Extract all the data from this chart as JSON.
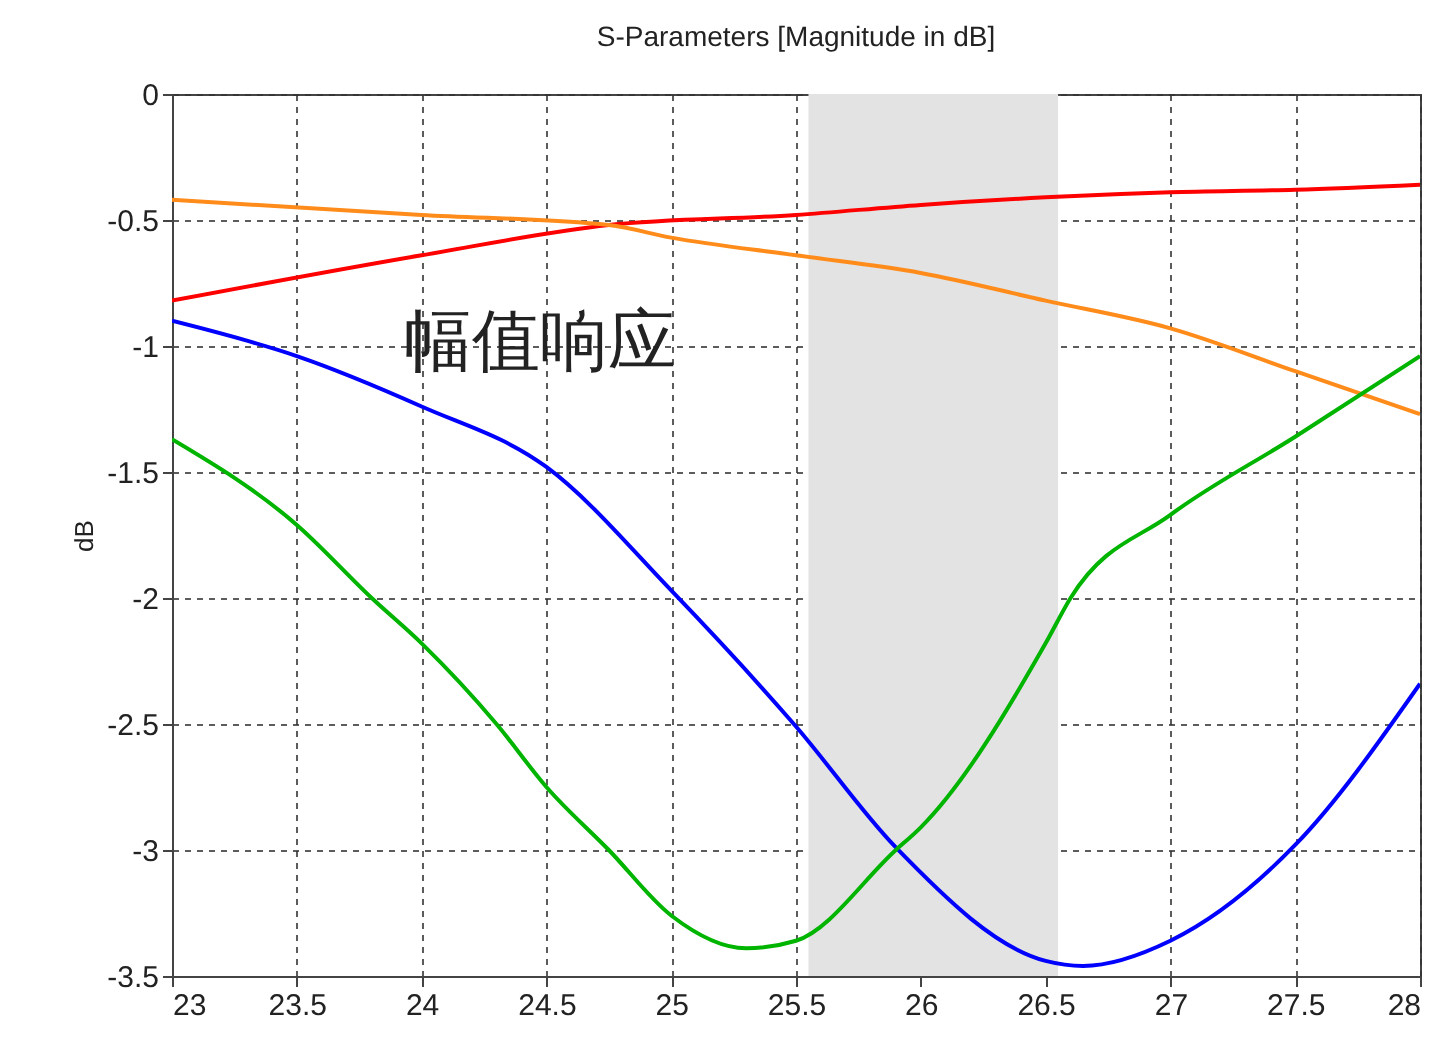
{
  "chart_data": {
    "type": "line",
    "title": "S-Parameters [Magnitude in dB]",
    "ylabel": "dB",
    "annotations": [
      "幅值响应"
    ],
    "xlim": [
      23,
      28
    ],
    "xticks": [
      23,
      23.5,
      24,
      24.5,
      25,
      25.5,
      26,
      26.5,
      27,
      27.5,
      28
    ],
    "ylim": [
      -3.5,
      0
    ],
    "yticks": [
      -3.5,
      -3,
      -2.5,
      -2,
      -1.5,
      -1,
      -0.5,
      0
    ],
    "grid": true,
    "legend": false,
    "marker": "none",
    "line_style": "solid",
    "bands": [
      {
        "axis": "x",
        "from": 25.55,
        "to": 26.55,
        "color": "#e3e3e3"
      }
    ],
    "series": [
      {
        "color": "#ff0000",
        "x": [
          23,
          24,
          24.75,
          25.5,
          26,
          26.5,
          27,
          27.5,
          28
        ],
        "values": [
          -0.82,
          -0.64,
          -0.52,
          -0.48,
          -0.44,
          -0.41,
          -0.39,
          -0.38,
          -0.36
        ]
      },
      {
        "color": "#ff8c1a",
        "x": [
          23,
          24,
          24.75,
          25,
          25.5,
          26,
          26.5,
          27,
          27.5,
          28
        ],
        "values": [
          -0.42,
          -0.48,
          -0.52,
          -0.57,
          -0.64,
          -0.71,
          -0.82,
          -0.93,
          -1.1,
          -1.27
        ]
      },
      {
        "color": "#0000ff",
        "x": [
          23,
          23.5,
          24,
          24.5,
          25,
          25.5,
          25.9,
          26.5,
          26.65,
          27,
          27.5,
          28
        ],
        "values": [
          -0.9,
          -1.04,
          -1.24,
          -1.48,
          -1.97,
          -2.51,
          -2.99,
          -3.44,
          -3.46,
          -3.36,
          -2.98,
          -2.34
        ]
      },
      {
        "color": "#00b400",
        "x": [
          23,
          23.5,
          23.8,
          24,
          24.3,
          24.5,
          24.75,
          25,
          25.3,
          25.5,
          25.9,
          26,
          26.5,
          26.6,
          27,
          27.5,
          28
        ],
        "values": [
          -1.37,
          -1.71,
          -2,
          -2.18,
          -2.5,
          -2.75,
          -3,
          -3.26,
          -3.39,
          -3.36,
          -3,
          -2.91,
          -2.18,
          -2,
          -1.67,
          -1.36,
          -1.04
        ]
      }
    ]
  }
}
